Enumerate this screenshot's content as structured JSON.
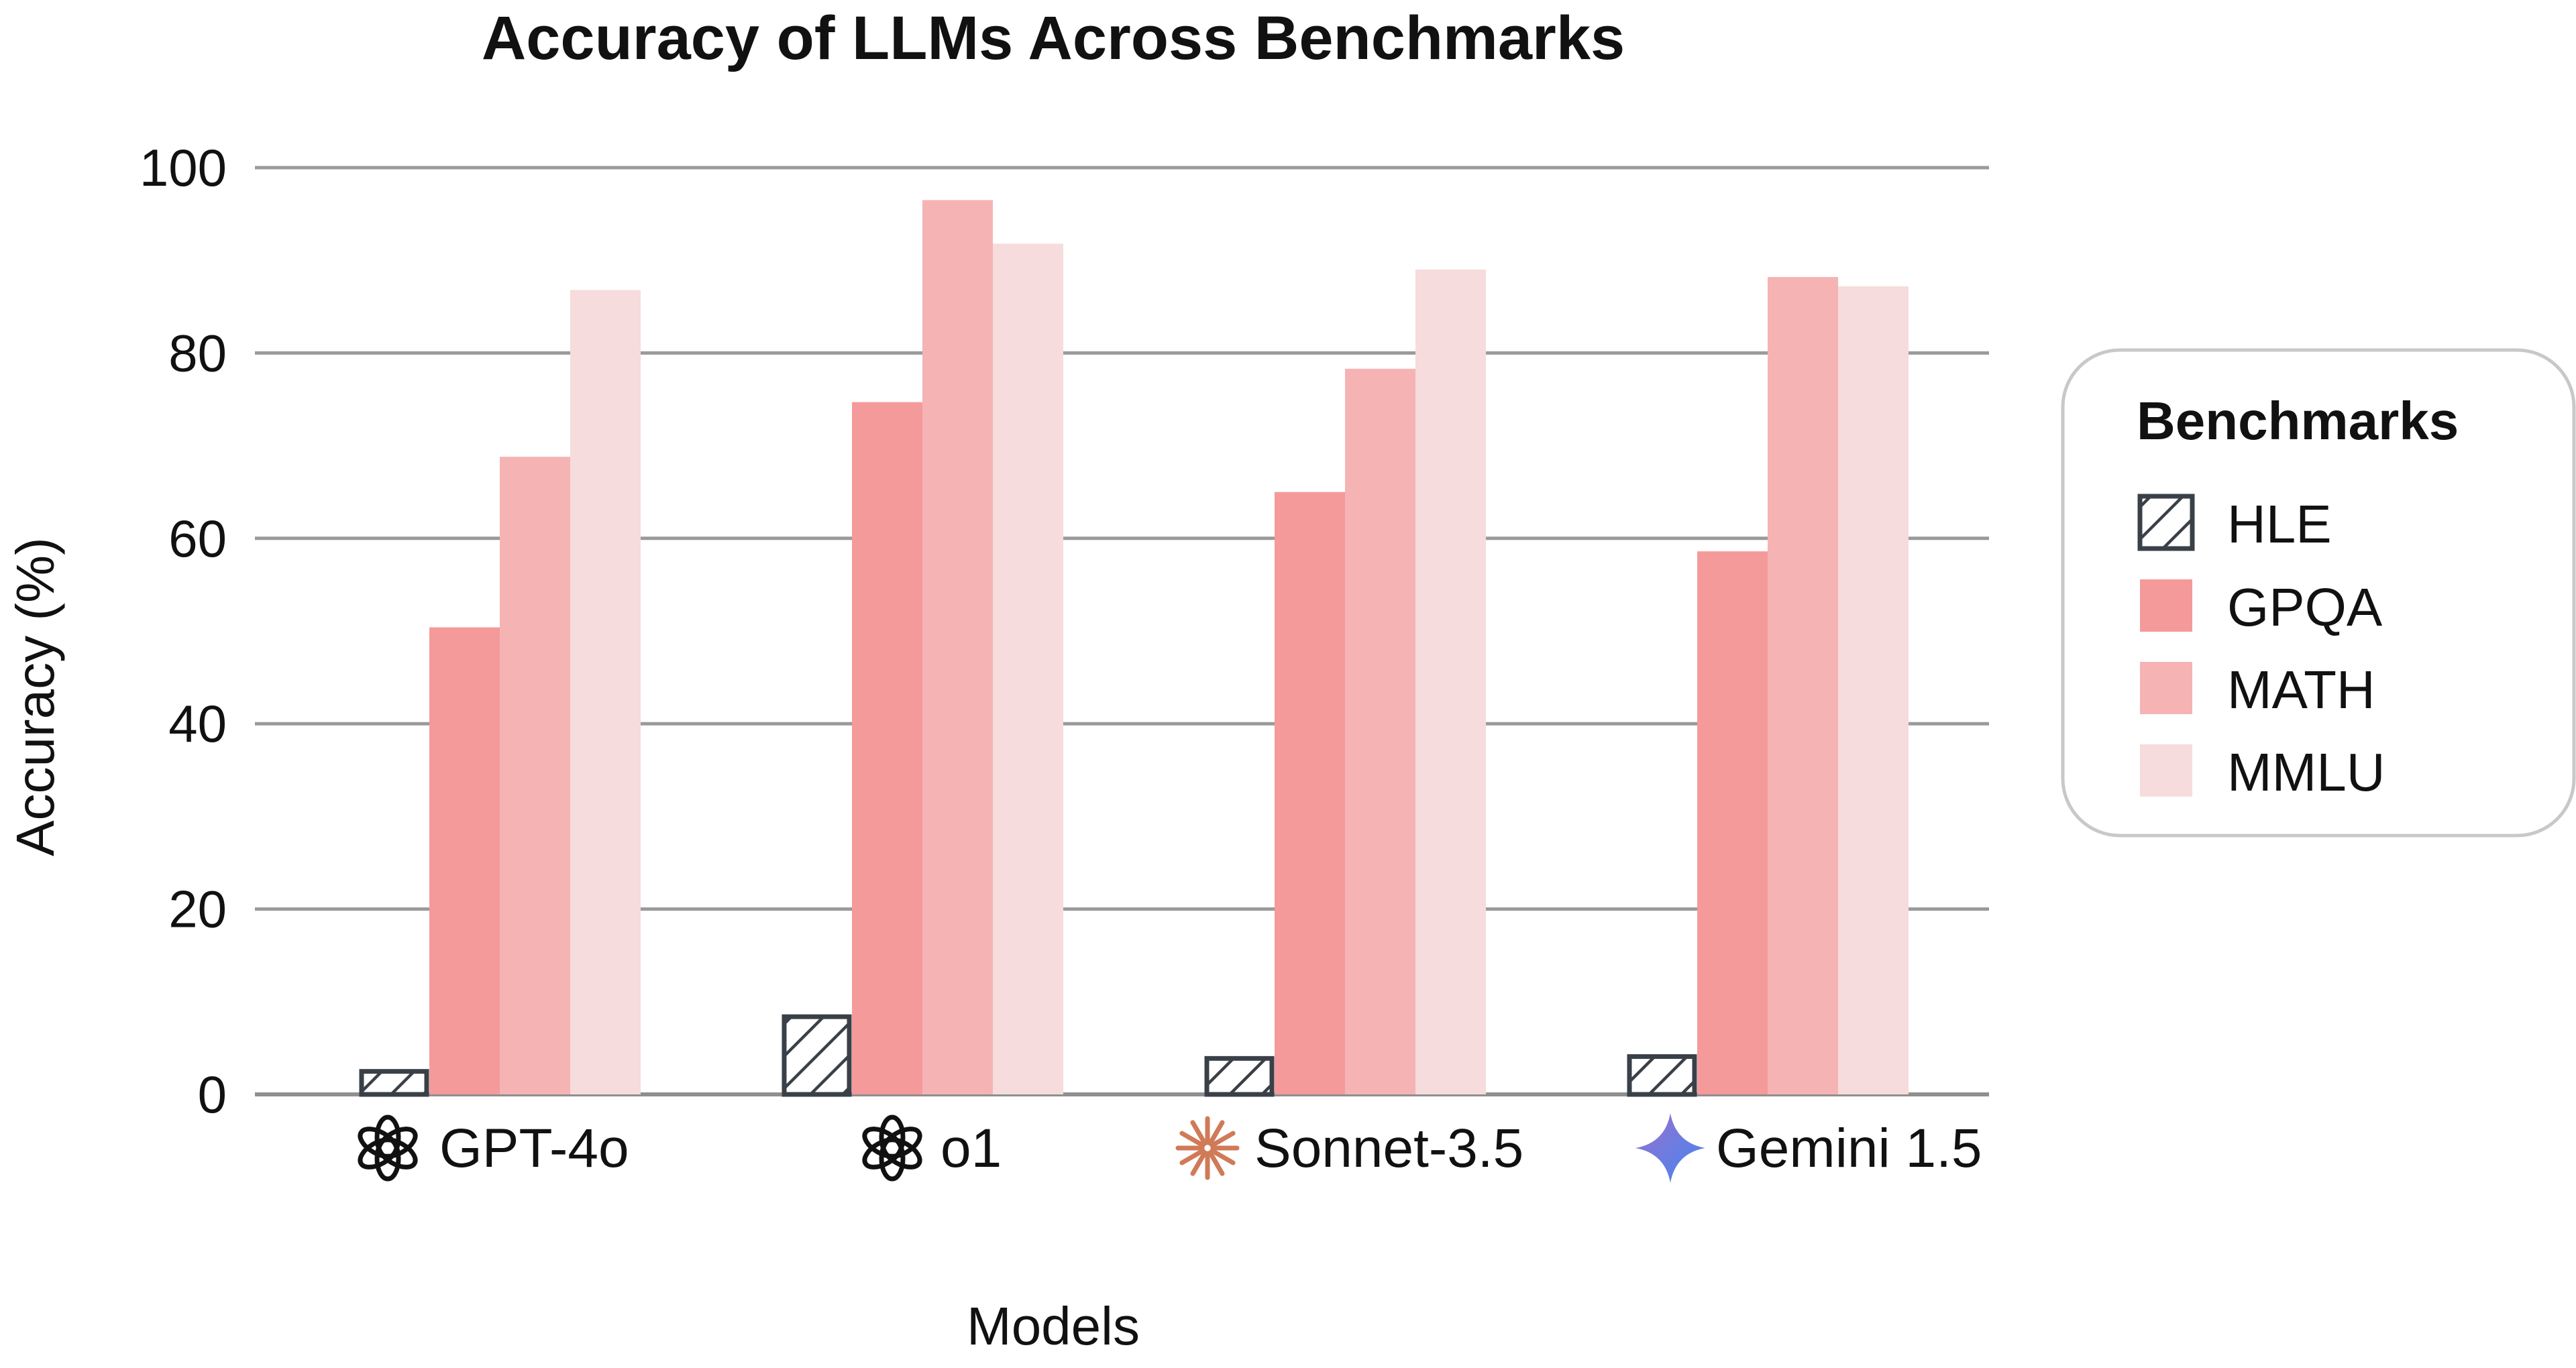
{
  "chart_data": {
    "type": "bar",
    "title": "Accuracy of LLMs Across Benchmarks",
    "xlabel": "Models",
    "ylabel": "Accuracy (%)",
    "ylim": [
      0,
      100
    ],
    "yticks": [
      0,
      20,
      40,
      60,
      80,
      100
    ],
    "grid": "horizontal",
    "categories": [
      "GPT-4o",
      "o1",
      "Sonnet-3.5",
      "Gemini 1.5"
    ],
    "category_icons": [
      "openai-logo-icon",
      "openai-logo-icon",
      "anthropic-asterisk-icon",
      "gemini-sparkle-icon"
    ],
    "series": [
      {
        "name": "HLE",
        "values": [
          2.7,
          8.6,
          4.1,
          4.3
        ],
        "color": "#ffffff",
        "pattern": "diagonal-hatch",
        "stroke": "#3a4048"
      },
      {
        "name": "GPQA",
        "values": [
          50.4,
          74.7,
          65.0,
          58.6
        ],
        "color": "#f49a9a"
      },
      {
        "name": "MATH",
        "values": [
          68.8,
          96.5,
          78.3,
          88.2
        ],
        "color": "#f6b3b4"
      },
      {
        "name": "MMLU",
        "values": [
          86.8,
          91.8,
          89.0,
          87.2
        ],
        "color": "#f6dcdc"
      }
    ],
    "legend": {
      "title": "Benchmarks",
      "position": "right"
    }
  }
}
